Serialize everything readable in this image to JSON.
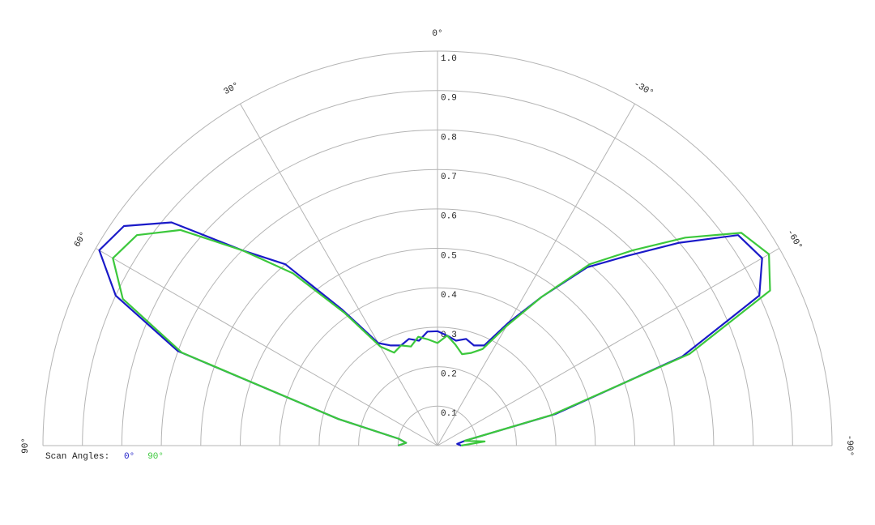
{
  "chart_data": {
    "type": "polar",
    "legend_title": "Scan Angles:",
    "theta": [
      90,
      85,
      80,
      75,
      70,
      65,
      60,
      55,
      50,
      45,
      40,
      35,
      30,
      25,
      20,
      15,
      10,
      5,
      0,
      -5,
      -10,
      -15,
      -20,
      -25,
      -30,
      -35,
      -40,
      -45,
      -50,
      -55,
      -60,
      -65,
      -70,
      -75,
      -80,
      -85,
      -90
    ],
    "series": [
      {
        "name": "0°",
        "color": "#1a1ac8",
        "values": [
          0.1,
          0.08,
          0.1,
          0.26,
          0.7,
          0.9,
          0.99,
          0.97,
          0.88,
          0.7,
          0.6,
          0.42,
          0.3,
          0.28,
          0.27,
          0.28,
          0.27,
          0.29,
          0.29,
          0.28,
          0.27,
          0.28,
          0.27,
          0.28,
          0.36,
          0.46,
          0.59,
          0.68,
          0.8,
          0.93,
          0.95,
          0.9,
          0.66,
          0.31,
          0.07,
          0.05,
          0.06
        ]
      },
      {
        "name": "90°",
        "color": "#3cc83c",
        "values": [
          0.1,
          0.08,
          0.1,
          0.26,
          0.69,
          0.88,
          0.95,
          0.93,
          0.85,
          0.7,
          0.57,
          0.41,
          0.29,
          0.26,
          0.27,
          0.26,
          0.28,
          0.27,
          0.26,
          0.28,
          0.26,
          0.24,
          0.25,
          0.27,
          0.35,
          0.46,
          0.6,
          0.7,
          0.82,
          0.94,
          0.97,
          0.93,
          0.68,
          0.3,
          0.07,
          0.12,
          0.06
        ]
      }
    ],
    "thetalim": [
      90,
      -90
    ],
    "thetaticks": [
      {
        "value": 90,
        "label": "90°"
      },
      {
        "value": 60,
        "label": "60°"
      },
      {
        "value": 30,
        "label": "30°"
      },
      {
        "value": 0,
        "label": "0°"
      },
      {
        "value": -30,
        "label": "-30°"
      },
      {
        "value": -60,
        "label": "-60°"
      },
      {
        "value": -90,
        "label": "-90°"
      }
    ],
    "rlim": [
      0,
      1
    ],
    "rticks": [
      0.1,
      0.2,
      0.3,
      0.4,
      0.5,
      0.6,
      0.7,
      0.8,
      0.9,
      {
        "value": 1,
        "label": "1.0"
      }
    ],
    "grid": true
  }
}
